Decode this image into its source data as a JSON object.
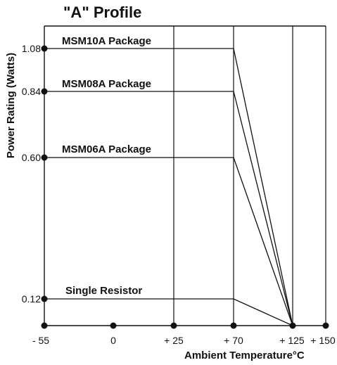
{
  "chart_data": {
    "type": "line",
    "title": "\"A\" Profile",
    "xlabel": "Ambient Temperature°C",
    "ylabel": "Power Rating (Watts)",
    "x_ticks": [
      "- 55",
      "0",
      "+ 25",
      "+ 70",
      "+ 125",
      "+ 150"
    ],
    "y_ticks": [
      "1.08",
      "0.84",
      "0.60",
      "0.12"
    ],
    "series": [
      {
        "name": "MSM10A Package",
        "points": [
          [
            -55,
            1.08
          ],
          [
            70,
            1.08
          ],
          [
            125,
            0
          ]
        ]
      },
      {
        "name": "MSM08A Package",
        "points": [
          [
            -55,
            0.84
          ],
          [
            70,
            0.84
          ],
          [
            125,
            0
          ]
        ]
      },
      {
        "name": "MSM06A Package",
        "points": [
          [
            -55,
            0.6
          ],
          [
            70,
            0.6
          ],
          [
            125,
            0
          ]
        ]
      },
      {
        "name": "Single Resistor",
        "points": [
          [
            -55,
            0.12
          ],
          [
            70,
            0.12
          ],
          [
            125,
            0
          ]
        ]
      }
    ]
  }
}
